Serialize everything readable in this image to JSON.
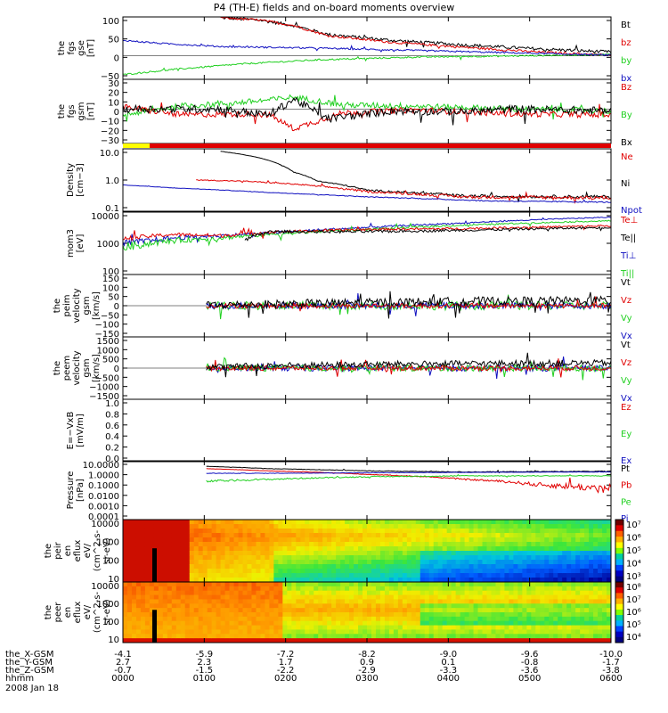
{
  "title": "P4 (TH-E) fields and on-board moments overview",
  "date_label": "2008 Jan 18",
  "colors": {
    "black": "#000000",
    "red": "#e00000",
    "green": "#20d020",
    "blue": "#1010c0",
    "yellow": "#ffff00"
  },
  "chart_data": [
    {
      "type": "line",
      "ylabel": [
        "the",
        "fgs",
        "gse",
        "[nT]"
      ],
      "yticks": [
        "100",
        "50",
        "0",
        "−50"
      ],
      "ylim": [
        -60,
        100
      ],
      "legend": [
        "Bt",
        "bz",
        "by",
        "bx"
      ],
      "legend_colors": [
        "black",
        "red",
        "green",
        "blue"
      ],
      "series": [
        {
          "name": "Bt",
          "color": "black",
          "points": [
            [
              0.2,
              98
            ],
            [
              0.28,
              92
            ],
            [
              0.35,
              78
            ],
            [
              0.42,
              55
            ],
            [
              0.55,
              40
            ],
            [
              0.7,
              28
            ],
            [
              0.85,
              18
            ],
            [
              1.0,
              10
            ]
          ],
          "noise": 4
        },
        {
          "name": "bz",
          "color": "red",
          "points": [
            [
              0.2,
              98
            ],
            [
              0.28,
              92
            ],
            [
              0.35,
              78
            ],
            [
              0.42,
              52
            ],
            [
              0.55,
              35
            ],
            [
              0.7,
              22
            ],
            [
              0.85,
              10
            ],
            [
              1.0,
              2
            ]
          ],
          "noise": 3
        },
        {
          "name": "by",
          "color": "green",
          "points": [
            [
              0,
              -48
            ],
            [
              0.1,
              -35
            ],
            [
              0.25,
              -20
            ],
            [
              0.4,
              -10
            ],
            [
              0.6,
              -3
            ],
            [
              0.8,
              0
            ],
            [
              1.0,
              4
            ]
          ],
          "noise": 2
        },
        {
          "name": "bx",
          "color": "blue",
          "points": [
            [
              0,
              40
            ],
            [
              0.08,
              32
            ],
            [
              0.2,
              24
            ],
            [
              0.4,
              20
            ],
            [
              0.6,
              14
            ],
            [
              0.8,
              8
            ],
            [
              1.0,
              2
            ]
          ],
          "noise": 2
        }
      ]
    },
    {
      "type": "line",
      "ylabel": [
        "the",
        "fgs",
        "gsm",
        "[nT]"
      ],
      "yticks": [
        "30",
        "20",
        "10",
        "0",
        "−10",
        "−20",
        "−30"
      ],
      "ylim": [
        -35,
        30
      ],
      "legend": [
        "Bz",
        "By",
        "Bx"
      ],
      "legend_colors": [
        "red",
        "green",
        "black"
      ],
      "series": [
        {
          "name": "By",
          "color": "green",
          "points": [
            [
              0,
              -6
            ],
            [
              0.12,
              3
            ],
            [
              0.2,
              5
            ],
            [
              0.3,
              9
            ],
            [
              0.35,
              12
            ],
            [
              0.45,
              4
            ],
            [
              0.6,
              3
            ],
            [
              0.8,
              0
            ],
            [
              1.0,
              -2
            ]
          ],
          "noise": 3
        },
        {
          "name": "Bz",
          "color": "red",
          "points": [
            [
              0,
              2
            ],
            [
              0.12,
              -6
            ],
            [
              0.25,
              -5
            ],
            [
              0.3,
              -6
            ],
            [
              0.35,
              -20
            ],
            [
              0.45,
              -4
            ],
            [
              0.6,
              -1
            ],
            [
              0.8,
              -5
            ],
            [
              1.0,
              -6
            ]
          ],
          "noise": 3
        },
        {
          "name": "Bx",
          "color": "black",
          "points": [
            [
              0,
              0
            ],
            [
              0.2,
              0
            ],
            [
              0.3,
              -6
            ],
            [
              0.35,
              10
            ],
            [
              0.42,
              -10
            ],
            [
              0.55,
              -2
            ],
            [
              0.7,
              -3
            ],
            [
              0.8,
              0
            ],
            [
              1.0,
              -2
            ]
          ],
          "noise": 4
        }
      ]
    },
    {
      "type": "line",
      "log": true,
      "ylabel": [
        "Density",
        "[cm−3]"
      ],
      "yticks": [
        "10.0",
        "1.0",
        "0.1"
      ],
      "ylim": [
        0.1,
        12
      ],
      "legend": [
        "Ne",
        "Ni",
        "Npot"
      ],
      "legend_colors": [
        "red",
        "black",
        "blue"
      ],
      "series": [
        {
          "name": "Ni",
          "color": "black",
          "points": [
            [
              0.2,
              10
            ],
            [
              0.28,
              6
            ],
            [
              0.35,
              2
            ],
            [
              0.4,
              1
            ],
            [
              0.5,
              0.5
            ],
            [
              0.7,
              0.32
            ],
            [
              1.0,
              0.3
            ]
          ],
          "noise": 0.04
        },
        {
          "name": "Ne",
          "color": "red",
          "points": [
            [
              0.15,
              1.1
            ],
            [
              0.25,
              1.0
            ],
            [
              0.35,
              0.8
            ],
            [
              0.5,
              0.45
            ],
            [
              0.7,
              0.3
            ],
            [
              1.0,
              0.28
            ]
          ],
          "noise": 0.04
        },
        {
          "name": "Npot",
          "color": "blue",
          "points": [
            [
              0,
              0.75
            ],
            [
              0.1,
              0.6
            ],
            [
              0.3,
              0.42
            ],
            [
              0.5,
              0.3
            ],
            [
              0.75,
              0.22
            ],
            [
              1.0,
              0.2
            ]
          ],
          "noise": 0.01
        }
      ]
    },
    {
      "type": "line",
      "log": true,
      "ylabel": [
        "mom3",
        "[eV]"
      ],
      "yticks": [
        "10000",
        "1000",
        "100"
      ],
      "ylim": [
        80,
        12000
      ],
      "legend": [
        "Te⊥",
        "Te||",
        "Ti⊥",
        "Ti||"
      ],
      "legend_colors": [
        "red",
        "black",
        "blue",
        "green"
      ],
      "series": [
        {
          "name": "Ti⊥",
          "color": "blue",
          "points": [
            [
              0,
              900
            ],
            [
              0.1,
              1500
            ],
            [
              0.2,
              1800
            ],
            [
              0.3,
              2200
            ],
            [
              0.5,
              3500
            ],
            [
              0.7,
              5000
            ],
            [
              1.0,
              8000
            ]
          ],
          "noise": 300
        },
        {
          "name": "Ti||",
          "color": "green",
          "points": [
            [
              0,
              700
            ],
            [
              0.1,
              1200
            ],
            [
              0.2,
              1500
            ],
            [
              0.3,
              2000
            ],
            [
              0.5,
              3000
            ],
            [
              0.7,
              4200
            ],
            [
              1.0,
              6000
            ]
          ],
          "noise": 300
        },
        {
          "name": "Te⊥",
          "color": "red",
          "points": [
            [
              0,
              1400
            ],
            [
              0.1,
              2000
            ],
            [
              0.2,
              1800
            ],
            [
              0.3,
              2400
            ],
            [
              0.5,
              3000
            ],
            [
              0.7,
              3200
            ],
            [
              1.0,
              4000
            ]
          ],
          "noise": 300
        },
        {
          "name": "Te||",
          "color": "black",
          "points": [
            [
              0.25,
              1200
            ],
            [
              0.3,
              2500
            ],
            [
              0.5,
              2500
            ],
            [
              0.7,
              2800
            ],
            [
              1.0,
              3500
            ]
          ],
          "noise": 300
        }
      ]
    },
    {
      "type": "line",
      "ylabel": [
        "the",
        "peim",
        "velocity",
        "gsm",
        "[km/s]"
      ],
      "yticks": [
        "150",
        "100",
        "50",
        "0",
        "−50",
        "−100",
        "−150"
      ],
      "ylim": [
        -150,
        150
      ],
      "legend": [
        "Vt",
        "Vz",
        "Vy",
        "Vx"
      ],
      "legend_colors": [
        "black",
        "red",
        "green",
        "blue"
      ],
      "series": [
        {
          "name": "Vy",
          "color": "green",
          "points": [
            [
              0.17,
              0
            ],
            [
              1.0,
              0
            ]
          ],
          "noise": 20
        },
        {
          "name": "Vx",
          "color": "blue",
          "points": [
            [
              0.17,
              0
            ],
            [
              1.0,
              0
            ]
          ],
          "noise": 15
        },
        {
          "name": "Vz",
          "color": "red",
          "points": [
            [
              0.17,
              0
            ],
            [
              1.0,
              0
            ]
          ],
          "noise": 12
        },
        {
          "name": "Vt",
          "color": "black",
          "points": [
            [
              0.17,
              2
            ],
            [
              0.3,
              8
            ],
            [
              0.5,
              15
            ],
            [
              0.7,
              22
            ],
            [
              1.0,
              25
            ]
          ],
          "noise": 20
        }
      ]
    },
    {
      "type": "line",
      "ylabel": [
        "the",
        "peem",
        "velocity",
        "gsm",
        "[km/s]"
      ],
      "yticks": [
        "1500",
        "1000",
        "500",
        "0",
        "−500",
        "−1000",
        "−1500"
      ],
      "ylim": [
        -1500,
        1500
      ],
      "legend": [
        "Vt",
        "Vz",
        "Vy",
        "Vx"
      ],
      "legend_colors": [
        "black",
        "red",
        "green",
        "blue"
      ],
      "series": [
        {
          "name": "Vx",
          "color": "blue",
          "points": [
            [
              0.17,
              0
            ],
            [
              1.0,
              0
            ]
          ],
          "noise": 150
        },
        {
          "name": "Vy",
          "color": "green",
          "points": [
            [
              0.17,
              0
            ],
            [
              1.0,
              0
            ]
          ],
          "noise": 150
        },
        {
          "name": "Vz",
          "color": "red",
          "points": [
            [
              0.17,
              0
            ],
            [
              1.0,
              0
            ]
          ],
          "noise": 120
        },
        {
          "name": "Vt",
          "color": "black",
          "points": [
            [
              0.17,
              40
            ],
            [
              0.3,
              120
            ],
            [
              0.6,
              200
            ],
            [
              1.0,
              250
            ]
          ],
          "noise": 150
        }
      ]
    },
    {
      "type": "line",
      "ylabel": [
        "E=−VxB",
        "[mV/m]"
      ],
      "yticks": [
        "1.0",
        "0.8",
        "0.6",
        "0.4",
        "0.2",
        "0.0"
      ],
      "ylim": [
        0,
        1
      ],
      "legend": [
        "Ez",
        "Ey",
        "Ex"
      ],
      "legend_colors": [
        "red",
        "green",
        "blue"
      ],
      "series": []
    },
    {
      "type": "line",
      "log": true,
      "ylabel": [
        "Pressure",
        "[nPa]"
      ],
      "yticks": [
        "10.0000",
        "1.0000",
        "0.1000",
        "0.0100",
        "0.0010",
        "0.0001"
      ],
      "ylim": [
        0.0001,
        12
      ],
      "legend": [
        "Pt",
        "Pb",
        "Pe",
        "Pi"
      ],
      "legend_colors": [
        "black",
        "red",
        "green",
        "blue"
      ],
      "series": [
        {
          "name": "Pt",
          "color": "black",
          "points": [
            [
              0.17,
              4
            ],
            [
              0.3,
              2.5
            ],
            [
              0.5,
              1.6
            ],
            [
              0.7,
              1.3
            ],
            [
              1.0,
              1.5
            ]
          ],
          "noise": 0.1
        },
        {
          "name": "Pb",
          "color": "red",
          "points": [
            [
              0.17,
              2.5
            ],
            [
              0.3,
              1.6
            ],
            [
              0.5,
              0.8
            ],
            [
              0.7,
              0.3
            ],
            [
              0.85,
              0.1
            ],
            [
              1.0,
              0.04
            ]
          ],
          "noise": 0.05
        },
        {
          "name": "Pe",
          "color": "green",
          "points": [
            [
              0.17,
              0.2
            ],
            [
              0.3,
              0.3
            ],
            [
              0.5,
              0.5
            ],
            [
              0.7,
              0.6
            ],
            [
              1.0,
              0.6
            ]
          ],
          "noise": 0.05
        },
        {
          "name": "Pi",
          "color": "blue",
          "points": [
            [
              0.17,
              1
            ],
            [
              0.3,
              1
            ],
            [
              0.5,
              1.1
            ],
            [
              0.7,
              1.2
            ],
            [
              1.0,
              1.3
            ]
          ],
          "noise": 0.05
        }
      ]
    },
    {
      "type": "heatmap",
      "ylabel": [
        "the",
        "peir",
        "en",
        "eflux",
        "eV/",
        "(cm^2-s-",
        "sr-eV)"
      ],
      "yticks": [
        "10000",
        "1000",
        "100",
        "10"
      ],
      "colorbar": [
        "10⁷",
        "10⁶",
        "10⁵",
        "10⁴",
        "10³"
      ]
    },
    {
      "type": "heatmap",
      "ylabel": [
        "the",
        "peer",
        "en",
        "eflux",
        "eV/",
        "(cm^2-s-",
        "sr-eV)"
      ],
      "yticks": [
        "10000",
        "1000",
        "100",
        "10"
      ],
      "colorbar": [
        "10⁸",
        "10⁷",
        "10⁶",
        "10⁵",
        "10⁴"
      ]
    }
  ],
  "x_axis": {
    "row_labels": [
      "the_X-GSM",
      "the_Y-GSM",
      "the_Z-GSM",
      "hhmm"
    ],
    "ticks": [
      [
        "-4.1",
        "2.7",
        "-0.7",
        "0000"
      ],
      [
        "-5.9",
        "2.3",
        "-1.5",
        "0100"
      ],
      [
        "-7.2",
        "1.7",
        "-2.2",
        "0200"
      ],
      [
        "-8.2",
        "0.9",
        "-2.9",
        "0300"
      ],
      [
        "-9.0",
        "0.1",
        "-3.3",
        "0400"
      ],
      [
        "-9.6",
        "-0.8",
        "-3.6",
        "0500"
      ],
      [
        "-10.0",
        "-1.7",
        "-3.8",
        "0600"
      ]
    ]
  }
}
